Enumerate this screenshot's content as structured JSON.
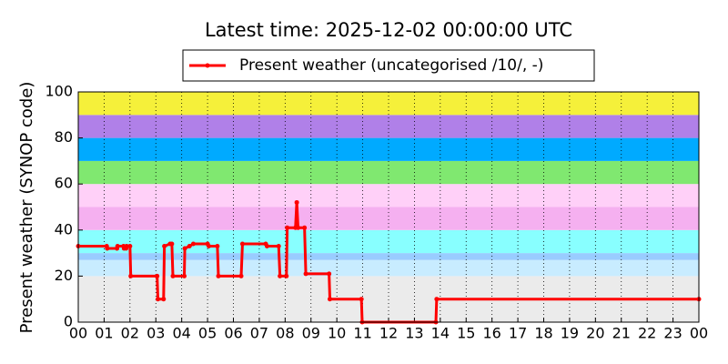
{
  "chart_data": {
    "type": "line",
    "title": "Latest time: 2025-12-02 00:00:00 UTC",
    "ylabel": "Present weather (SYNOP code)",
    "legend": "top",
    "grid": "x",
    "bands": [
      {
        "from": 0,
        "to": 20,
        "color": "#ebebeb"
      },
      {
        "from": 20,
        "to": 27,
        "color": "#c8ecff"
      },
      {
        "from": 27,
        "to": 30,
        "color": "#99ccff"
      },
      {
        "from": 30,
        "to": 40,
        "color": "#88ffff"
      },
      {
        "from": 40,
        "to": 50,
        "color": "#f5b0f0"
      },
      {
        "from": 50,
        "to": 60,
        "color": "#ffd0f8"
      },
      {
        "from": 60,
        "to": 70,
        "color": "#80e870"
      },
      {
        "from": 70,
        "to": 80,
        "color": "#00aaff"
      },
      {
        "from": 80,
        "to": 90,
        "color": "#b080e8"
      },
      {
        "from": 90,
        "to": 100,
        "color": "#f5f03a"
      }
    ],
    "xlim": [
      0,
      24
    ],
    "xticks": [
      {
        "value": 0,
        "label": "00"
      },
      {
        "value": 1,
        "label": "01"
      },
      {
        "value": 2,
        "label": "02"
      },
      {
        "value": 3,
        "label": "03"
      },
      {
        "value": 4,
        "label": "04"
      },
      {
        "value": 5,
        "label": "05"
      },
      {
        "value": 6,
        "label": "06"
      },
      {
        "value": 7,
        "label": "07"
      },
      {
        "value": 8,
        "label": "08"
      },
      {
        "value": 9,
        "label": "09"
      },
      {
        "value": 10,
        "label": "10"
      },
      {
        "value": 11,
        "label": "11"
      },
      {
        "value": 12,
        "label": "12"
      },
      {
        "value": 13,
        "label": "13"
      },
      {
        "value": 14,
        "label": "14"
      },
      {
        "value": 15,
        "label": "15"
      },
      {
        "value": 16,
        "label": "16"
      },
      {
        "value": 17,
        "label": "17"
      },
      {
        "value": 18,
        "label": "18"
      },
      {
        "value": 19,
        "label": "19"
      },
      {
        "value": 20,
        "label": "20"
      },
      {
        "value": 21,
        "label": "21"
      },
      {
        "value": 22,
        "label": "22"
      },
      {
        "value": 23,
        "label": "23"
      },
      {
        "value": 24,
        "label": "00"
      }
    ],
    "ylim": [
      0,
      100
    ],
    "yticks": [
      0,
      20,
      40,
      60,
      80,
      100
    ],
    "series": [
      {
        "name": "Present weather (uncategorised /10/, -)",
        "color": "#ff0000",
        "x": [
          0,
          1.1,
          1.12,
          1.5,
          1.52,
          1.75,
          1.77,
          1.85,
          1.87,
          2.0,
          2.03,
          3.05,
          3.08,
          3.3,
          3.33,
          3.55,
          3.62,
          3.66,
          4.1,
          4.12,
          4.3,
          4.45,
          5.0,
          5.05,
          5.38,
          5.42,
          6.3,
          6.35,
          7.25,
          7.3,
          7.75,
          7.8,
          8.05,
          8.08,
          8.4,
          8.45,
          8.5,
          8.75,
          8.8,
          9.7,
          9.73,
          10.95,
          10.98,
          13.83,
          13.86,
          24
        ],
        "values": [
          33,
          33,
          32,
          32,
          33,
          33,
          32,
          32,
          33,
          33,
          20,
          20,
          10,
          10,
          33,
          34,
          34,
          20,
          20,
          32,
          33,
          34,
          34,
          33,
          33,
          20,
          20,
          34,
          34,
          33,
          33,
          20,
          20,
          41,
          41,
          52,
          41,
          41,
          21,
          21,
          10,
          10,
          0,
          0,
          10,
          10
        ]
      }
    ]
  }
}
